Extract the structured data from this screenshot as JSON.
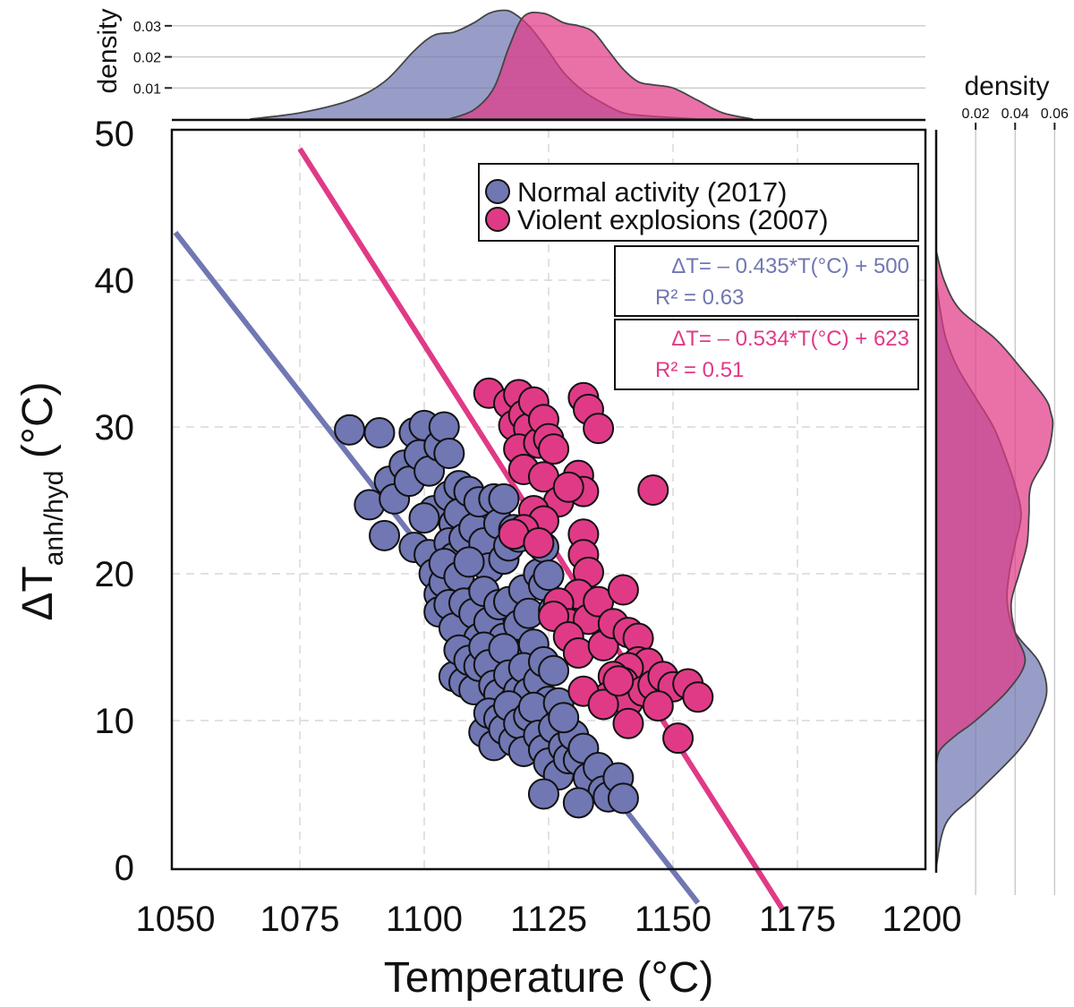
{
  "chart_data": {
    "type": "scatter",
    "xlabel": "Temperature (°C)",
    "ylabel_main": "ΔT",
    "ylabel_sub": "anh/hyd",
    "ylabel_unit": " (°C)",
    "xlim": [
      1050,
      1200
    ],
    "ylim": [
      0,
      50
    ],
    "x_ticks": [
      1050,
      1075,
      1100,
      1125,
      1150,
      1175,
      1200
    ],
    "y_ticks": [
      0,
      10,
      20,
      30,
      40,
      50
    ],
    "grid": true,
    "legend": "top-right",
    "colors": {
      "normal": "#7077b3",
      "violent": "#e03a87"
    },
    "series": [
      {
        "name": "Normal activity (2017)",
        "color": "#7077b3",
        "points": [
          [
            1085,
            29.8
          ],
          [
            1089,
            24.7
          ],
          [
            1091,
            29.6
          ],
          [
            1092,
            22.6
          ],
          [
            1093,
            26.3
          ],
          [
            1094,
            25.1
          ],
          [
            1096,
            27.4
          ],
          [
            1097,
            26.3
          ],
          [
            1098,
            29.6
          ],
          [
            1099,
            28.1
          ],
          [
            1100,
            30.1
          ],
          [
            1101,
            27.0
          ],
          [
            1102,
            24.3
          ],
          [
            1103,
            28.7
          ],
          [
            1104,
            30.0
          ],
          [
            1105,
            28.2
          ],
          [
            1105,
            25.3
          ],
          [
            1106,
            23.4
          ],
          [
            1107,
            26.0
          ],
          [
            1098,
            21.8
          ],
          [
            1100,
            23.8
          ],
          [
            1101,
            21.3
          ],
          [
            1102,
            20.0
          ],
          [
            1103,
            18.6
          ],
          [
            1104,
            19.4
          ],
          [
            1105,
            22.1
          ],
          [
            1106,
            21.1
          ],
          [
            1107,
            24.1
          ],
          [
            1108,
            22.4
          ],
          [
            1109,
            25.6
          ],
          [
            1110,
            23.1
          ],
          [
            1111,
            24.9
          ],
          [
            1112,
            22.1
          ],
          [
            1113,
            20.4
          ],
          [
            1114,
            25.1
          ],
          [
            1115,
            23.4
          ],
          [
            1116,
            21.0
          ],
          [
            1117,
            21.9
          ],
          [
            1118,
            23.0
          ],
          [
            1119,
            22.5
          ],
          [
            1103,
            17.4
          ],
          [
            1104,
            20.7
          ],
          [
            1105,
            17.9
          ],
          [
            1106,
            16.3
          ],
          [
            1107,
            19.8
          ],
          [
            1108,
            18.0
          ],
          [
            1109,
            20.8
          ],
          [
            1110,
            17.3
          ],
          [
            1111,
            15.6
          ],
          [
            1112,
            18.8
          ],
          [
            1113,
            16.7
          ],
          [
            1114,
            14.3
          ],
          [
            1115,
            17.9
          ],
          [
            1116,
            15.6
          ],
          [
            1117,
            18.1
          ],
          [
            1118,
            13.9
          ],
          [
            1119,
            16.5
          ],
          [
            1120,
            18.9
          ],
          [
            1121,
            17.3
          ],
          [
            1122,
            15.2
          ],
          [
            1123,
            20.0
          ],
          [
            1124,
            19.2
          ],
          [
            1106,
            13.0
          ],
          [
            1107,
            14.8
          ],
          [
            1108,
            12.6
          ],
          [
            1109,
            14.1
          ],
          [
            1110,
            12.1
          ],
          [
            1111,
            13.7
          ],
          [
            1112,
            15.0
          ],
          [
            1113,
            13.8
          ],
          [
            1114,
            12.4
          ],
          [
            1115,
            11.8
          ],
          [
            1116,
            14.9
          ],
          [
            1117,
            13.1
          ],
          [
            1118,
            11.3
          ],
          [
            1119,
            12.0
          ],
          [
            1120,
            13.6
          ],
          [
            1121,
            11.9
          ],
          [
            1122,
            10.8
          ],
          [
            1123,
            12.7
          ],
          [
            1124,
            14.0
          ],
          [
            1125,
            11.3
          ],
          [
            1126,
            13.4
          ],
          [
            1112,
            9.2
          ],
          [
            1113,
            10.5
          ],
          [
            1114,
            8.3
          ],
          [
            1115,
            10.1
          ],
          [
            1116,
            9.4
          ],
          [
            1117,
            11.0
          ],
          [
            1118,
            8.6
          ],
          [
            1119,
            9.8
          ],
          [
            1120,
            7.9
          ],
          [
            1121,
            10.3
          ],
          [
            1122,
            10.9
          ],
          [
            1123,
            9.0
          ],
          [
            1124,
            8.0
          ],
          [
            1125,
            7.1
          ],
          [
            1126,
            9.5
          ],
          [
            1127,
            6.3
          ],
          [
            1128,
            8.2
          ],
          [
            1129,
            7.4
          ],
          [
            1130,
            9.0
          ],
          [
            1131,
            7.3
          ],
          [
            1132,
            8.1
          ],
          [
            1133,
            6.1
          ],
          [
            1135,
            6.8
          ],
          [
            1136,
            5.2
          ],
          [
            1137,
            4.8
          ],
          [
            1139,
            6.1
          ],
          [
            1140,
            4.7
          ],
          [
            1124,
            5.0
          ],
          [
            1131,
            4.4
          ],
          [
            1127,
            11.2
          ],
          [
            1128,
            10.2
          ],
          [
            1124,
            21.8
          ],
          [
            1125,
            19.9
          ],
          [
            1126,
            17.5
          ],
          [
            1116,
            25.1
          ]
        ]
      },
      {
        "name": "Violent explosions (2007)",
        "color": "#e03a87",
        "points": [
          [
            1113,
            32.3
          ],
          [
            1117,
            31.6
          ],
          [
            1118,
            30.1
          ],
          [
            1119,
            32.2
          ],
          [
            1120,
            30.8
          ],
          [
            1121,
            29.9
          ],
          [
            1122,
            31.7
          ],
          [
            1119,
            28.5
          ],
          [
            1120,
            27.1
          ],
          [
            1123,
            28.9
          ],
          [
            1124,
            30.5
          ],
          [
            1125,
            29.2
          ],
          [
            1126,
            28.5
          ],
          [
            1132,
            32.0
          ],
          [
            1133,
            31.2
          ],
          [
            1135,
            29.9
          ],
          [
            1124,
            26.6
          ],
          [
            1127,
            24.9
          ],
          [
            1122,
            24.3
          ],
          [
            1124,
            23.6
          ],
          [
            1120,
            23.0
          ],
          [
            1118,
            22.7
          ],
          [
            1123,
            22.1
          ],
          [
            1131,
            26.7
          ],
          [
            1132,
            25.6
          ],
          [
            1129,
            25.9
          ],
          [
            1146,
            25.7
          ],
          [
            1132,
            22.7
          ],
          [
            1132,
            21.3
          ],
          [
            1133,
            20.1
          ],
          [
            1131,
            18.6
          ],
          [
            1127,
            18.0
          ],
          [
            1129,
            16.6
          ],
          [
            1133,
            16.9
          ],
          [
            1126,
            17.1
          ],
          [
            1135,
            18.1
          ],
          [
            1140,
            18.9
          ],
          [
            1129,
            15.7
          ],
          [
            1131,
            14.6
          ],
          [
            1136,
            15.1
          ],
          [
            1138,
            16.6
          ],
          [
            1141,
            16.0
          ],
          [
            1143,
            15.6
          ],
          [
            1143,
            14.0
          ],
          [
            1145,
            13.9
          ],
          [
            1141,
            13.6
          ],
          [
            1138,
            13.0
          ],
          [
            1140,
            12.6
          ],
          [
            1137,
            11.6
          ],
          [
            1141,
            11.3
          ],
          [
            1144,
            12.0
          ],
          [
            1146,
            12.4
          ],
          [
            1148,
            13.0
          ],
          [
            1150,
            12.3
          ],
          [
            1153,
            12.5
          ],
          [
            1155,
            11.6
          ],
          [
            1147,
            11.0
          ],
          [
            1141,
            9.8
          ],
          [
            1151,
            8.8
          ],
          [
            1132,
            12.0
          ],
          [
            1136,
            11.1
          ],
          [
            1139,
            12.7
          ]
        ]
      }
    ],
    "regression": [
      {
        "equation": "ΔT= – 0.435*T(°C) + 500",
        "r2": "R² = 0.63",
        "slope": -0.435,
        "intercept": 500,
        "x_range": [
          1050,
          1155
        ],
        "color": "#7077b3"
      },
      {
        "equation": "ΔT= – 0.534*T(°C) + 623",
        "r2": "R² = 0.51",
        "slope": -0.534,
        "intercept": 623,
        "x_range": [
          1075,
          1172
        ],
        "color": "#e03a87"
      }
    ],
    "top_density": {
      "label": "density",
      "ticks": [
        0.01,
        0.02,
        0.03
      ],
      "tick_labels": [
        "0.01",
        "0.02",
        "0.03"
      ],
      "max": 0.036,
      "series": [
        {
          "name": "Normal activity (2017)",
          "color": "#7077b3",
          "x": [
            1065,
            1075,
            1085,
            1092,
            1098,
            1102,
            1106,
            1110,
            1113,
            1116,
            1118,
            1121,
            1124,
            1128,
            1132,
            1136,
            1140,
            1145,
            1155
          ],
          "y": [
            0,
            0.002,
            0.006,
            0.012,
            0.022,
            0.027,
            0.028,
            0.031,
            0.034,
            0.035,
            0.034,
            0.03,
            0.024,
            0.015,
            0.009,
            0.005,
            0.002,
            0.001,
            0
          ]
        },
        {
          "name": "Violent explosions (2007)",
          "color": "#e03a87",
          "x": [
            1105,
            1110,
            1114,
            1117,
            1120,
            1124,
            1128,
            1131,
            1134,
            1137,
            1140,
            1143,
            1146,
            1150,
            1155,
            1160,
            1166
          ],
          "y": [
            0,
            0.003,
            0.01,
            0.023,
            0.033,
            0.034,
            0.031,
            0.03,
            0.028,
            0.022,
            0.016,
            0.012,
            0.011,
            0.01,
            0.006,
            0.002,
            0
          ]
        }
      ]
    },
    "right_density": {
      "label": "density",
      "ticks": [
        0.02,
        0.04,
        0.06
      ],
      "tick_labels": [
        "0.02",
        "0.04",
        "0.06"
      ],
      "max": 0.068,
      "series": [
        {
          "name": "Normal activity (2017)",
          "color": "#7077b3",
          "y": [
            0,
            3,
            5,
            8,
            10,
            12,
            14,
            16,
            18,
            20,
            22,
            24,
            26,
            28,
            30,
            32,
            34,
            36,
            38,
            40
          ],
          "d": [
            0,
            0.005,
            0.02,
            0.042,
            0.051,
            0.056,
            0.052,
            0.04,
            0.036,
            0.037,
            0.04,
            0.043,
            0.04,
            0.035,
            0.029,
            0.02,
            0.011,
            0.005,
            0.002,
            0
          ]
        },
        {
          "name": "Violent explosions (2007)",
          "color": "#e03a87",
          "y": [
            7,
            8,
            9,
            10,
            12,
            14,
            16,
            18,
            20,
            22,
            24,
            26,
            28,
            30,
            31,
            32,
            34,
            36,
            38,
            40,
            42
          ],
          "d": [
            0,
            0.002,
            0.01,
            0.02,
            0.036,
            0.045,
            0.04,
            0.038,
            0.042,
            0.046,
            0.047,
            0.048,
            0.056,
            0.059,
            0.058,
            0.055,
            0.043,
            0.03,
            0.012,
            0.004,
            0
          ]
        }
      ]
    }
  }
}
